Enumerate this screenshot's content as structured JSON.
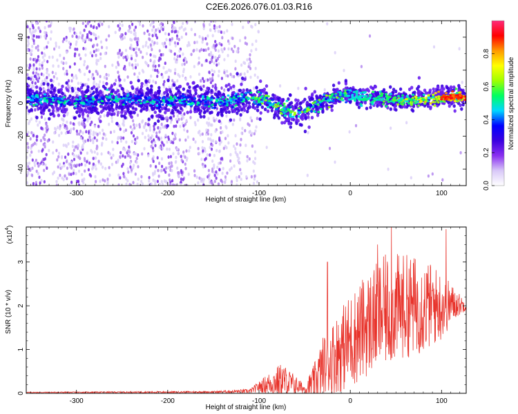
{
  "title": "C2E6.2026.076.01.03.R16",
  "colors": {
    "trace": "#e8342c",
    "spectrogram_core": "#00d2ff",
    "spectrogram_halo": "#7a30e8",
    "axis": "#000000"
  },
  "chart_data": [
    {
      "type": "heatmap",
      "name": "spectrogram",
      "xlabel": "Height of straight line (km)",
      "ylabel": "Frequency (Hz)",
      "xlim": [
        -355,
        127
      ],
      "ylim": [
        -50,
        50
      ],
      "xticks": [
        -300,
        -200,
        -100,
        0,
        100
      ],
      "yticks": [
        -40,
        -20,
        0,
        20,
        40
      ],
      "colorbar": {
        "label": "Normalized spectral amplitude",
        "range": [
          0,
          1
        ],
        "ticks": [
          "0.0",
          "0.2",
          "0.4",
          "0.6",
          "0.8"
        ],
        "tick_values": [
          0,
          0.2,
          0.4,
          0.6,
          0.8
        ],
        "colormap": [
          "#ffffff",
          "#d8c8f8",
          "#8a30f0",
          "#3a00e0",
          "#0000ff",
          "#00d8ff",
          "#00ff60",
          "#a0ff00",
          "#ffff00",
          "#ff9900",
          "#ff0000",
          "#ff2a7a"
        ]
      },
      "center_track": [
        {
          "x": -355,
          "y": 3
        },
        {
          "x": -300,
          "y": 1
        },
        {
          "x": -250,
          "y": 2
        },
        {
          "x": -200,
          "y": 1
        },
        {
          "x": -150,
          "y": 1
        },
        {
          "x": -120,
          "y": 2
        },
        {
          "x": -100,
          "y": 3
        },
        {
          "x": -90,
          "y": 1
        },
        {
          "x": -80,
          "y": -2
        },
        {
          "x": -70,
          "y": -5
        },
        {
          "x": -60,
          "y": -6
        },
        {
          "x": -50,
          "y": -5
        },
        {
          "x": -40,
          "y": -1
        },
        {
          "x": -30,
          "y": 1
        },
        {
          "x": -15,
          "y": 4
        },
        {
          "x": -5,
          "y": 6
        },
        {
          "x": 10,
          "y": 4
        },
        {
          "x": 30,
          "y": 3
        },
        {
          "x": 60,
          "y": 2
        },
        {
          "x": 90,
          "y": 3
        },
        {
          "x": 127,
          "y": 4
        }
      ]
    },
    {
      "type": "line",
      "name": "snr",
      "xlabel": "Height of straight line (km)",
      "ylabel": "SNR (10 * v/v)",
      "y_multiplier": "(x10",
      "y_multiplier_exp": "4",
      "y_multiplier_close": ")",
      "xlim": [
        -355,
        127
      ],
      "ylim": [
        0,
        3.8
      ],
      "xticks": [
        -300,
        -200,
        -100,
        0,
        100
      ],
      "yticks": [
        0,
        1,
        2,
        3
      ],
      "envelope": [
        {
          "x": -355,
          "mean": 0.02,
          "amp": 0.01
        },
        {
          "x": -150,
          "mean": 0.03,
          "amp": 0.02
        },
        {
          "x": -110,
          "mean": 0.05,
          "amp": 0.05
        },
        {
          "x": -100,
          "mean": 0.15,
          "amp": 0.12
        },
        {
          "x": -85,
          "mean": 0.25,
          "amp": 0.3
        },
        {
          "x": -75,
          "mean": 0.3,
          "amp": 0.4
        },
        {
          "x": -62,
          "mean": 0.2,
          "amp": 0.25
        },
        {
          "x": -50,
          "mean": 0.1,
          "amp": 0.1
        },
        {
          "x": -40,
          "mean": 0.25,
          "amp": 0.4
        },
        {
          "x": -30,
          "mean": 0.6,
          "amp": 0.7
        },
        {
          "x": -15,
          "mean": 0.9,
          "amp": 0.9
        },
        {
          "x": 0,
          "mean": 1.2,
          "amp": 1.1
        },
        {
          "x": 20,
          "mean": 1.6,
          "amp": 1.2
        },
        {
          "x": 40,
          "mean": 1.9,
          "amp": 1.3
        },
        {
          "x": 60,
          "mean": 2.0,
          "amp": 1.2
        },
        {
          "x": 80,
          "mean": 2.0,
          "amp": 1.1
        },
        {
          "x": 100,
          "mean": 2.0,
          "amp": 0.8
        },
        {
          "x": 115,
          "mean": 2.05,
          "amp": 0.35
        },
        {
          "x": 127,
          "mean": 2.0,
          "amp": 0.1
        }
      ],
      "peaks": [
        {
          "x": -25,
          "y": 3.0
        },
        {
          "x": 45,
          "y": 3.8
        },
        {
          "x": 105,
          "y": 3.75
        },
        {
          "x": 30,
          "y": 3.4
        }
      ]
    }
  ]
}
